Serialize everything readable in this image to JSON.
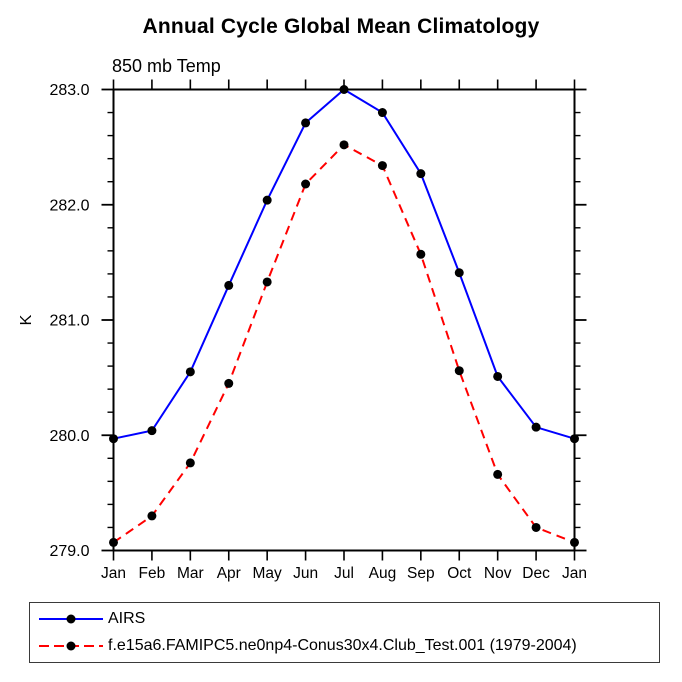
{
  "title": "Annual Cycle Global Mean Climatology",
  "subtitle": "850 mb Temp",
  "chart_data": {
    "type": "line",
    "title": "Annual Cycle Global Mean Climatology",
    "subtitle": "850 mb Temp",
    "ylabel": "K",
    "xlabel": "",
    "categories": [
      "Jan",
      "Feb",
      "Mar",
      "Apr",
      "May",
      "Jun",
      "Jul",
      "Aug",
      "Sep",
      "Oct",
      "Nov",
      "Dec",
      "Jan"
    ],
    "ylim": [
      279.0,
      283.0
    ],
    "ytick_major": [
      279.0,
      280.0,
      281.0,
      282.0,
      283.0
    ],
    "ytick_labels": [
      "279.0",
      "280.0",
      "281.0",
      "282.0",
      "283.0"
    ],
    "ytick_minor_step": 0.2,
    "grid": false,
    "legend_position": "bottom-left-box",
    "axis_color": "#000000",
    "marker_color": "#000000",
    "series": [
      {
        "name": "AIRS",
        "color": "#0000ff",
        "line_style": "solid",
        "values": [
          279.97,
          280.04,
          280.55,
          281.3,
          282.04,
          282.71,
          283.0,
          282.8,
          282.27,
          281.41,
          280.51,
          280.07,
          279.97
        ]
      },
      {
        "name": "f.e15a6.FAMIPC5.ne0np4-Conus30x4.Club_Test.001 (1979-2004)",
        "color": "#ff0000",
        "line_style": "dashed",
        "values": [
          279.07,
          279.3,
          279.76,
          280.45,
          281.33,
          282.18,
          282.52,
          282.34,
          281.57,
          280.56,
          279.66,
          279.2,
          279.07
        ]
      }
    ]
  },
  "legend": {
    "items": [
      {
        "label": "AIRS"
      },
      {
        "label": "f.e15a6.FAMIPC5.ne0np4-Conus30x4.Club_Test.001 (1979-2004)"
      }
    ]
  }
}
